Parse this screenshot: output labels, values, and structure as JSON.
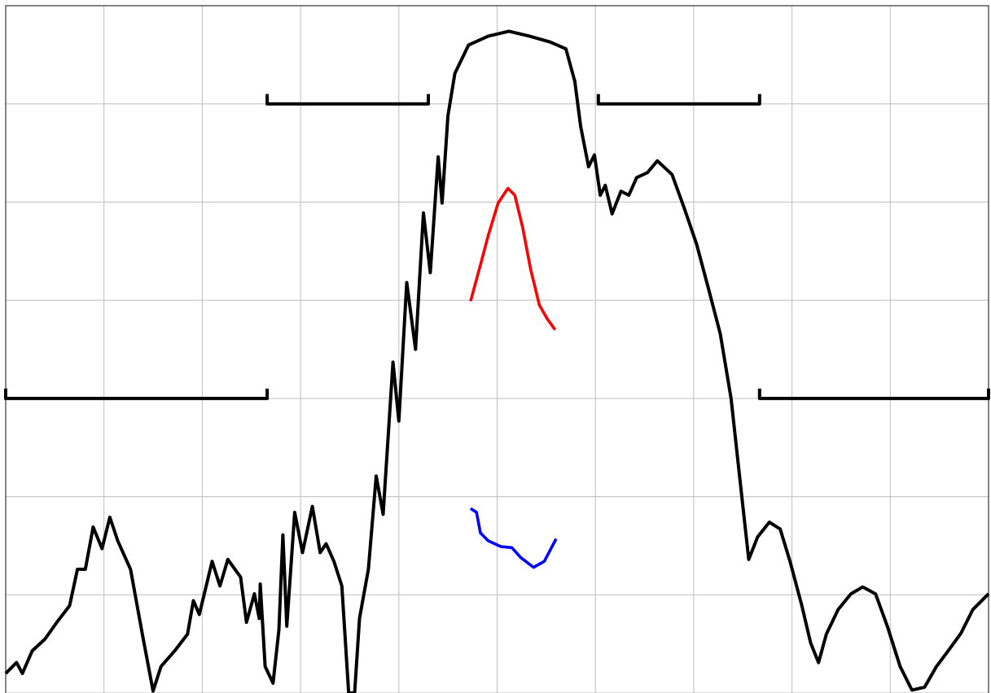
{
  "chart_data": {
    "type": "line",
    "xlim": [
      0,
      10
    ],
    "ylim": [
      0,
      7
    ],
    "xticks": [
      0,
      1,
      2,
      3,
      4,
      5,
      6,
      7,
      8,
      9,
      10
    ],
    "yticks": [
      0,
      1,
      2,
      3,
      4,
      5,
      6,
      7
    ],
    "grid": true,
    "series": [
      {
        "color": "#000000",
        "x": [
          0,
          0.11,
          0.17,
          0.27,
          0.4,
          0.52,
          0.65,
          0.73,
          0.81,
          0.89,
          0.98,
          1.06,
          1.14,
          1.27,
          1.39,
          1.5,
          1.58,
          1.72,
          1.85,
          1.91,
          1.97,
          2.1,
          2.18,
          2.26,
          2.39,
          2.45,
          2.53,
          2.58,
          2.59,
          2.64,
          2.72,
          2.78,
          2.82,
          2.86,
          2.94,
          3.02,
          3.12,
          3.2,
          3.26,
          3.34,
          3.42,
          3.49,
          3.55,
          3.6,
          3.69,
          3.77,
          3.84,
          3.94,
          4.0,
          4.08,
          4.17,
          4.25,
          4.32,
          4.4,
          4.44,
          4.5,
          4.57,
          4.71,
          4.91,
          5.12,
          5.33,
          5.54,
          5.7,
          5.79,
          5.85,
          5.93,
          5.99,
          6.05,
          6.1,
          6.17,
          6.26,
          6.34,
          6.42,
          6.53,
          6.63,
          6.78,
          6.9,
          7.03,
          7.15,
          7.27,
          7.38,
          7.48,
          7.56,
          7.65,
          7.77,
          7.88,
          7.98,
          8.1,
          8.19,
          8.27,
          8.35,
          8.47,
          8.6,
          8.72,
          8.85,
          8.97,
          9.1,
          9.22,
          9.35,
          9.47,
          9.59,
          9.72,
          9.84,
          10
        ],
        "values": [
          0.2,
          0.31,
          0.2,
          0.43,
          0.55,
          0.72,
          0.89,
          1.26,
          1.26,
          1.69,
          1.47,
          1.79,
          1.55,
          1.26,
          0.6,
          0.02,
          0.27,
          0.43,
          0.6,
          0.94,
          0.8,
          1.34,
          1.09,
          1.36,
          1.18,
          0.72,
          1.01,
          0.76,
          1.11,
          0.27,
          0.1,
          0.64,
          1.61,
          0.68,
          1.84,
          1.43,
          1.9,
          1.43,
          1.52,
          1.34,
          1.09,
          0,
          0,
          0.76,
          1.26,
          2.21,
          1.82,
          3.37,
          2.77,
          4.18,
          3.5,
          4.89,
          4.28,
          5.46,
          4.99,
          5.88,
          6.31,
          6.6,
          6.69,
          6.74,
          6.69,
          6.63,
          6.56,
          6.23,
          5.77,
          5.36,
          5.48,
          5.07,
          5.17,
          4.88,
          5.11,
          5.07,
          5.25,
          5.3,
          5.42,
          5.28,
          4.95,
          4.57,
          4.12,
          3.66,
          3.0,
          2.09,
          1.36,
          1.59,
          1.74,
          1.67,
          1.34,
          0.89,
          0.51,
          0.31,
          0.6,
          0.85,
          1.01,
          1.08,
          1.01,
          0.68,
          0.27,
          0.03,
          0.06,
          0.27,
          0.43,
          0.61,
          0.85,
          1.01
        ]
      },
      {
        "color": "#ff0000",
        "x": [
          4.73,
          4.83,
          4.91,
          5.01,
          5.11,
          5.18,
          5.26,
          5.34,
          5.43,
          5.51,
          5.59
        ],
        "values": [
          3.99,
          4.36,
          4.66,
          4.99,
          5.14,
          5.07,
          4.74,
          4.32,
          3.95,
          3.81,
          3.7
        ]
      },
      {
        "color": "#0000ff",
        "x": [
          4.73,
          4.79,
          4.83,
          4.91,
          5.04,
          5.15,
          5.24,
          5.37,
          5.48,
          5.6
        ],
        "values": [
          1.88,
          1.84,
          1.63,
          1.55,
          1.49,
          1.48,
          1.38,
          1.28,
          1.34,
          1.57
        ]
      },
      {
        "color": "#000000",
        "x": [
          0,
          0,
          2.66,
          2.66,
          null,
          2.66,
          2.66,
          4.3,
          4.3,
          null,
          6.03,
          6.03,
          7.67,
          7.67,
          null,
          7.67,
          7.67,
          10,
          10
        ],
        "values": [
          3.1,
          3,
          3,
          3.1,
          null,
          6.1,
          6,
          6,
          6.1,
          null,
          6.1,
          6,
          6,
          6.1,
          null,
          3.1,
          3,
          3,
          3.1
        ]
      }
    ]
  }
}
